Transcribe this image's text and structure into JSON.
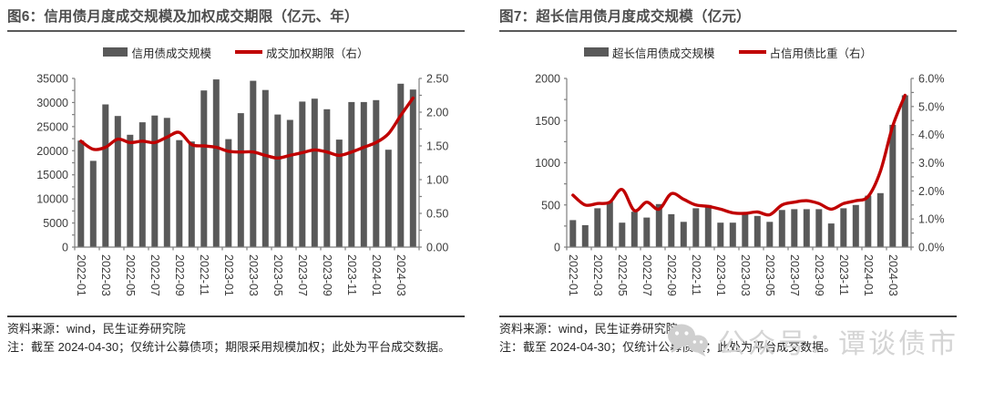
{
  "colors": {
    "bar": "#595959",
    "line": "#C00000",
    "axis": "#7f7f7f",
    "tick_label": "#3d3d3d",
    "title": "#4d4d4d",
    "watermark": "#d4d4d4"
  },
  "watermark": {
    "icon": "wechat-chat-bubbles-icon",
    "text": "公众号：谭谈债市"
  },
  "charts": [
    {
      "title": "图6：信用债月度成交规模及加权成交期限（亿元、年）",
      "legend": [
        {
          "swatch": "bar",
          "label": "信用债成交规模"
        },
        {
          "swatch": "line",
          "label": "成交加权期限（右）"
        }
      ],
      "source": "资料来源：wind，民生证券研究院",
      "note": "注：截至 2024-04-30；仅统计公募债项；期限采用规模加权；此处为平台成交数据。",
      "chart_data": {
        "type": "bar+line",
        "x": [
          "2022-01",
          "2022-02",
          "2022-03",
          "2022-04",
          "2022-05",
          "2022-06",
          "2022-07",
          "2022-08",
          "2022-09",
          "2022-10",
          "2022-11",
          "2022-12",
          "2023-01",
          "2023-02",
          "2023-03",
          "2023-04",
          "2023-05",
          "2023-06",
          "2023-07",
          "2023-08",
          "2023-09",
          "2023-10",
          "2023-11",
          "2023-12",
          "2024-01",
          "2024-02",
          "2024-03",
          "2024-04"
        ],
        "x_label_every": 2,
        "series": [
          {
            "name": "信用债成交规模",
            "type": "bar",
            "axis": "left",
            "values": [
              22100,
              17900,
              29600,
              27200,
              23300,
              25900,
              27300,
              26800,
              22200,
              21900,
              32500,
              34800,
              22400,
              27800,
              34500,
              32600,
              27500,
              26400,
              30200,
              30800,
              28600,
              22300,
              30100,
              30100,
              30500,
              20200,
              33900,
              32700
            ]
          },
          {
            "name": "成交加权期限（右）",
            "type": "line",
            "axis": "right",
            "values": [
              1.57,
              1.45,
              1.48,
              1.6,
              1.55,
              1.57,
              1.55,
              1.63,
              1.7,
              1.52,
              1.5,
              1.48,
              1.42,
              1.41,
              1.41,
              1.36,
              1.32,
              1.36,
              1.4,
              1.44,
              1.41,
              1.36,
              1.41,
              1.48,
              1.55,
              1.68,
              1.95,
              2.21
            ]
          }
        ],
        "left_axis": {
          "min": 0,
          "max": 35000,
          "tick_step": 5000,
          "minor_step": 2500,
          "tick_labels": [
            "0",
            "5000",
            "10000",
            "15000",
            "20000",
            "25000",
            "30000",
            "35000"
          ]
        },
        "right_axis": {
          "min": 0,
          "max": 2.5,
          "tick_step": 0.5,
          "minor_step": 0.25,
          "tick_labels": [
            "0.00",
            "0.50",
            "1.00",
            "1.50",
            "2.00",
            "2.50"
          ]
        },
        "grid": false,
        "legend_position": "top"
      }
    },
    {
      "title": "图7：超长信用债月度成交规模（亿元）",
      "legend": [
        {
          "swatch": "bar",
          "label": "超长信用债成交规模"
        },
        {
          "swatch": "line",
          "label": "占信用债比重（右）"
        }
      ],
      "source": "资料来源：wind，民生证券研究院",
      "note": "注：截至 2024-04-30；仅统计公募债项；此处为平台成交数据。",
      "chart_data": {
        "type": "bar+line",
        "x": [
          "2022-01",
          "2022-02",
          "2022-03",
          "2022-04",
          "2022-05",
          "2022-06",
          "2022-07",
          "2022-08",
          "2022-09",
          "2022-10",
          "2022-11",
          "2022-12",
          "2023-01",
          "2023-02",
          "2023-03",
          "2023-04",
          "2023-05",
          "2023-06",
          "2023-07",
          "2023-08",
          "2023-09",
          "2023-10",
          "2023-11",
          "2023-12",
          "2024-01",
          "2024-02",
          "2024-03",
          "2024-04"
        ],
        "x_label_every": 2,
        "series": [
          {
            "name": "超长信用债成交规模",
            "type": "bar",
            "axis": "left",
            "values": [
              320,
              260,
              460,
              540,
              290,
              420,
              350,
              510,
              390,
              300,
              460,
              500,
              290,
              290,
              390,
              370,
              300,
              440,
              450,
              450,
              450,
              280,
              460,
              500,
              610,
              640,
              1450,
              1800
            ]
          },
          {
            "name": "占信用债比重（右）",
            "type": "line",
            "axis": "right",
            "values": [
              1.85,
              1.5,
              1.55,
              1.6,
              2.05,
              1.3,
              1.6,
              1.35,
              1.9,
              1.7,
              1.5,
              1.45,
              1.35,
              1.22,
              1.2,
              1.25,
              1.15,
              1.5,
              1.6,
              1.65,
              1.55,
              1.35,
              1.55,
              1.65,
              1.8,
              2.7,
              4.3,
              5.4
            ]
          }
        ],
        "left_axis": {
          "min": 0,
          "max": 2000,
          "tick_step": 500,
          "minor_step": 250,
          "tick_labels": [
            "0",
            "500",
            "1000",
            "1500",
            "2000"
          ]
        },
        "right_axis": {
          "min": 0,
          "max": 6,
          "tick_step": 1,
          "minor_step": 0.5,
          "tick_labels": [
            "0.0%",
            "1.0%",
            "2.0%",
            "3.0%",
            "4.0%",
            "5.0%",
            "6.0%"
          ]
        },
        "grid": false,
        "legend_position": "top"
      }
    }
  ]
}
